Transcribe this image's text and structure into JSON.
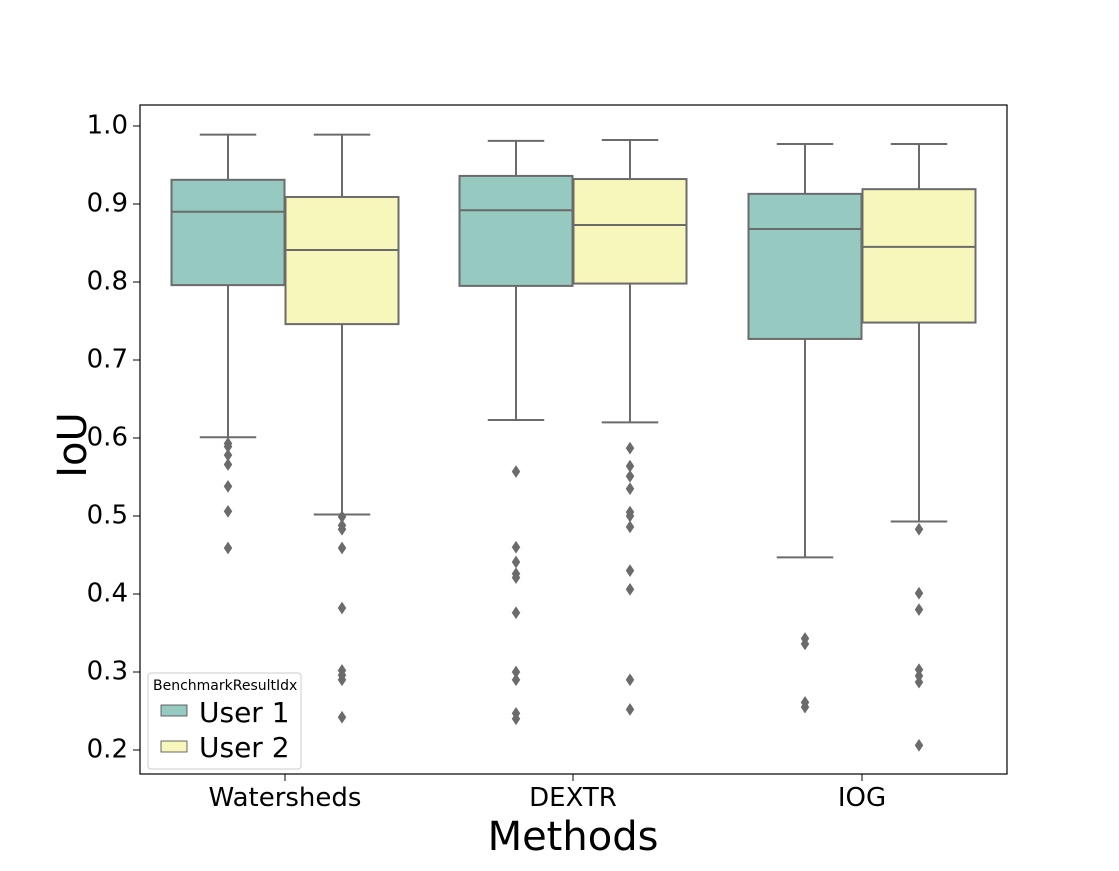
{
  "chart_data": {
    "type": "box",
    "title": "",
    "xlabel": "Methods",
    "ylabel": "IoU",
    "categories": [
      "Watersheds",
      "DEXTR",
      "IOG"
    ],
    "ylim": [
      0.17,
      1.03
    ],
    "yticks": [
      "0.2",
      "0.3",
      "0.4",
      "0.5",
      "0.6",
      "0.7",
      "0.8",
      "0.9",
      "1.0"
    ],
    "grid": false,
    "legend": {
      "title": "BenchmarkResultIdx",
      "placement": "lower-left"
    },
    "series": [
      {
        "name": "User 1",
        "color": "#96c9c0",
        "boxes": [
          {
            "whisker_low": 0.601,
            "q1": 0.796,
            "median": 0.89,
            "q3": 0.931,
            "whisker_high": 0.989,
            "outliers": [
              0.593,
              0.589,
              0.578,
              0.566,
              0.538,
              0.506,
              0.459
            ]
          },
          {
            "whisker_low": 0.623,
            "q1": 0.795,
            "median": 0.892,
            "q3": 0.936,
            "whisker_high": 0.981,
            "outliers": [
              0.557,
              0.46,
              0.441,
              0.426,
              0.421,
              0.376,
              0.3,
              0.29,
              0.247,
              0.24
            ]
          },
          {
            "whisker_low": 0.447,
            "q1": 0.727,
            "median": 0.868,
            "q3": 0.913,
            "whisker_high": 0.977,
            "outliers": [
              0.343,
              0.336,
              0.261,
              0.255
            ]
          }
        ]
      },
      {
        "name": "User 2",
        "color": "#f7f7bc",
        "boxes": [
          {
            "whisker_low": 0.502,
            "q1": 0.746,
            "median": 0.841,
            "q3": 0.909,
            "whisker_high": 0.989,
            "outliers": [
              0.499,
              0.488,
              0.483,
              0.459,
              0.382,
              0.302,
              0.296,
              0.29,
              0.242
            ]
          },
          {
            "whisker_low": 0.62,
            "q1": 0.798,
            "median": 0.873,
            "q3": 0.932,
            "whisker_high": 0.982,
            "outliers": [
              0.587,
              0.564,
              0.551,
              0.535,
              0.505,
              0.5,
              0.486,
              0.43,
              0.406,
              0.29,
              0.252
            ]
          },
          {
            "whisker_low": 0.493,
            "q1": 0.748,
            "median": 0.845,
            "q3": 0.919,
            "whisker_high": 0.977,
            "outliers": [
              0.483,
              0.401,
              0.38,
              0.303,
              0.295,
              0.287,
              0.206
            ]
          }
        ]
      }
    ],
    "line_color": "#6b6b6b"
  }
}
